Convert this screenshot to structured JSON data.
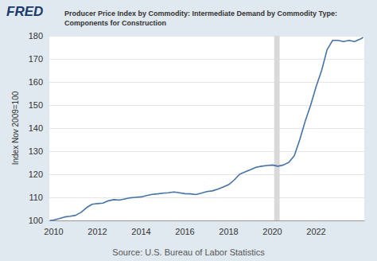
{
  "chart_data": {
    "type": "line",
    "logo": "FRED",
    "title": "Producer Price Index by Commodity: Intermediate Demand by Commodity Type: Components for Construction",
    "y_label": "Index Nov 2009=100",
    "source": "Source: U.S. Bureau of Labor Statistics",
    "series": [
      {
        "name": "Producer Price Index by Commodity: Intermediate Demand by Commodity Type: Components for Construction",
        "color": "#4572a7",
        "x": [
          2009.83,
          2010.0,
          2010.25,
          2010.5,
          2010.75,
          2011.0,
          2011.25,
          2011.5,
          2011.75,
          2012.0,
          2012.25,
          2012.5,
          2012.75,
          2013.0,
          2013.25,
          2013.5,
          2013.75,
          2014.0,
          2014.25,
          2014.5,
          2014.75,
          2015.0,
          2015.25,
          2015.5,
          2015.75,
          2016.0,
          2016.25,
          2016.5,
          2016.75,
          2017.0,
          2017.25,
          2017.5,
          2017.75,
          2018.0,
          2018.25,
          2018.5,
          2018.75,
          2019.0,
          2019.25,
          2019.5,
          2019.75,
          2020.0,
          2020.25,
          2020.5,
          2020.75,
          2021.0,
          2021.25,
          2021.5,
          2021.75,
          2022.0,
          2022.25,
          2022.5,
          2022.75,
          2023.0,
          2023.25,
          2023.5,
          2023.75,
          2024.0,
          2024.15
        ],
        "values": [
          100.0,
          100.2,
          100.8,
          101.5,
          101.8,
          102.2,
          103.5,
          105.5,
          107.0,
          107.3,
          107.5,
          108.5,
          109.0,
          108.8,
          109.3,
          109.8,
          110.0,
          110.2,
          110.8,
          111.3,
          111.5,
          111.8,
          112.0,
          112.3,
          112.0,
          111.6,
          111.5,
          111.2,
          111.8,
          112.5,
          112.8,
          113.5,
          114.5,
          115.5,
          117.5,
          120.0,
          121.0,
          122.0,
          123.0,
          123.5,
          123.8,
          124.0,
          123.5,
          124.0,
          125.2,
          128.0,
          135.0,
          143.0,
          150.0,
          158.0,
          165.0,
          174.0,
          178.0,
          178.0,
          177.5,
          178.0,
          177.5,
          178.5,
          179.3
        ]
      }
    ],
    "recessions": [
      [
        2020.08,
        2020.33
      ]
    ],
    "xlim": [
      2009.8,
      2024.2
    ],
    "xticks": [
      2010,
      2012,
      2014,
      2016,
      2018,
      2020,
      2022
    ],
    "ylim": [
      100,
      180
    ],
    "yticks": [
      100,
      110,
      120,
      130,
      140,
      150,
      160,
      170,
      180
    ],
    "grid": true,
    "legend": false
  }
}
